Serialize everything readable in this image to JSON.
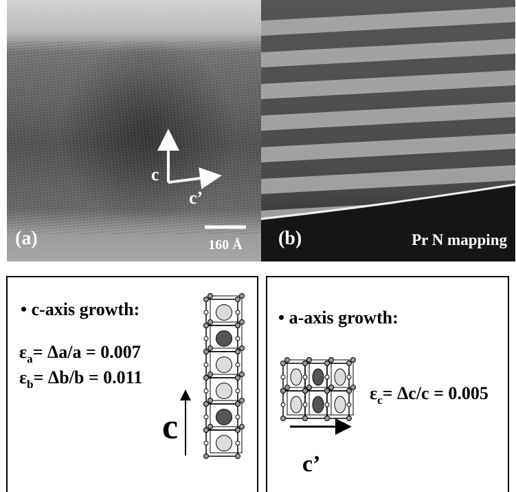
{
  "panels": [
    {
      "label": "(a)",
      "axis_labels": [
        "c",
        "c’"
      ],
      "scale_bar": "160 Å"
    },
    {
      "label": "(b)",
      "caption": "Pr N mapping"
    }
  ],
  "boxes": [
    {
      "heading": "• c-axis growth:",
      "equations": [
        {
          "symbol": "ε",
          "subscript": "a",
          "text": "= Δa/a = 0.007"
        },
        {
          "symbol": "ε",
          "subscript": "b",
          "text": "= Δb/b = 0.011"
        }
      ],
      "axis_label": "c"
    },
    {
      "heading": "• a-axis growth:",
      "equations": [
        {
          "symbol": "ε",
          "subscript": "c",
          "text": "= Δc/c = 0.005"
        }
      ],
      "axis_label": "c’"
    }
  ]
}
